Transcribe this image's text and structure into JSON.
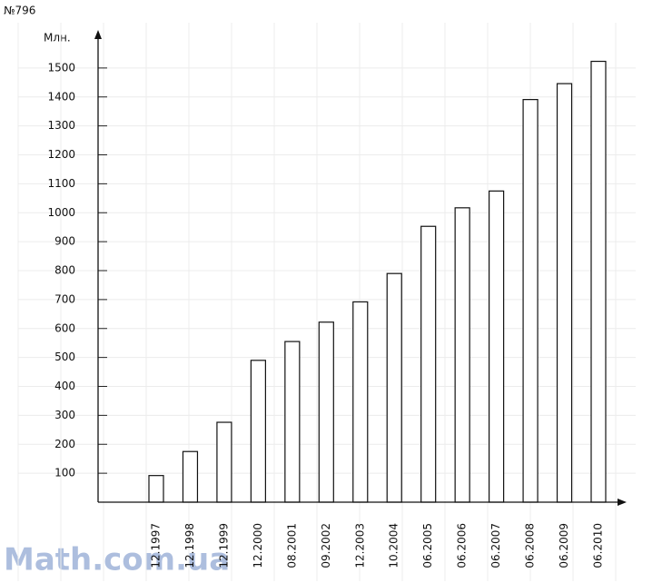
{
  "chart_data": {
    "type": "bar",
    "title": "№796",
    "y_label": "Млн.",
    "categories": [
      "12.1997",
      "12.1998",
      "12.1999",
      "12.2000",
      "08.2001",
      "09.2002",
      "12.2003",
      "10.2004",
      "06.2005",
      "06.2006",
      "06.2007",
      "06.2008",
      "06.2009",
      "06.2010"
    ],
    "values": [
      92,
      175,
      276,
      490,
      555,
      622,
      692,
      790,
      953,
      1017,
      1075,
      1391,
      1446,
      1523
    ],
    "color": "#ffffff",
    "ylim": [
      0,
      1600
    ],
    "yticks": [
      100,
      200,
      300,
      400,
      500,
      600,
      700,
      800,
      900,
      1000,
      1100,
      1200,
      1300,
      1400,
      1500
    ],
    "grid": true,
    "watermark": "Math.com.ua"
  }
}
